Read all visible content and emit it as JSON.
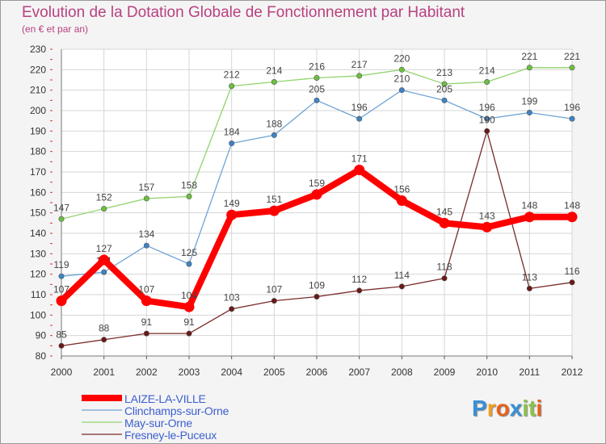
{
  "title": "Evolution de la Dotation Globale de Fonctionnement par Habitant",
  "subtitle": "(en € et par an)",
  "logo": {
    "text": "Proxiti",
    "letters": [
      "P",
      "r",
      "o",
      "x",
      "i",
      "t",
      "i"
    ],
    "colors": [
      "#3a8fd6",
      "#f0a020",
      "#e8601c",
      "#3a8fd6",
      "#8bc34a",
      "#8bc34a",
      "#e8601c"
    ]
  },
  "chart_data": {
    "type": "line",
    "title": "Evolution de la Dotation Globale de Fonctionnement par Habitant",
    "subtitle": "(en € et par an)",
    "xlabel": "",
    "ylabel": "",
    "ylim": [
      80,
      230
    ],
    "yticks": [
      80,
      90,
      100,
      110,
      120,
      130,
      140,
      150,
      160,
      170,
      180,
      190,
      200,
      210,
      220,
      230
    ],
    "grid": true,
    "legend_position": "bottom-left",
    "categories": [
      "2000",
      "2001",
      "2002",
      "2003",
      "2004",
      "2005",
      "2006",
      "2007",
      "2008",
      "2009",
      "2010",
      "2011",
      "2012"
    ],
    "series": [
      {
        "name": "May-sur-Orne",
        "color": "#92d36e",
        "dot": "#6cc040",
        "thick": false,
        "values": [
          147,
          152,
          157,
          158,
          212,
          214,
          216,
          217,
          220,
          213,
          214,
          221,
          221
        ],
        "labels": [
          "147",
          "152",
          "157",
          "158",
          "212",
          "214",
          "216",
          "217",
          "220",
          "213",
          "214",
          "221",
          "221"
        ]
      },
      {
        "name": "Clinchamps-sur-Orne",
        "color": "#6fa4d6",
        "dot": "#3f83c4",
        "thick": false,
        "values": [
          119,
          121,
          134,
          125,
          184,
          188,
          205,
          196,
          210,
          205,
          196,
          199,
          196
        ],
        "labels": [
          "119",
          "121",
          "134",
          "125",
          "184",
          "188",
          "205",
          "196",
          "210",
          "205",
          "196",
          "199",
          "196"
        ]
      },
      {
        "name": "Fresney-le-Puceux",
        "color": "#7a2a2a",
        "dot": "#6a1818",
        "thick": false,
        "values": [
          85,
          88,
          91,
          91,
          103,
          107,
          109,
          112,
          114,
          118,
          190,
          113,
          116
        ],
        "labels": [
          "85",
          "88",
          "91",
          "91",
          "103",
          "107",
          "109",
          "112",
          "114",
          "118",
          "190",
          "113",
          "116"
        ]
      },
      {
        "name": "LAIZE-LA-VILLE",
        "color": "#ff0000",
        "dot": "#ff0000",
        "thick": true,
        "values": [
          107,
          127,
          107,
          104,
          149,
          151,
          159,
          171,
          156,
          145,
          143,
          148,
          148
        ],
        "labels": [
          "107",
          "127",
          "107",
          "104",
          "149",
          "151",
          "159",
          "171",
          "156",
          "145",
          "143",
          "148",
          "148"
        ]
      }
    ],
    "legend_order": [
      "LAIZE-LA-VILLE",
      "Clinchamps-sur-Orne",
      "May-sur-Orne",
      "Fresney-le-Puceux"
    ]
  }
}
